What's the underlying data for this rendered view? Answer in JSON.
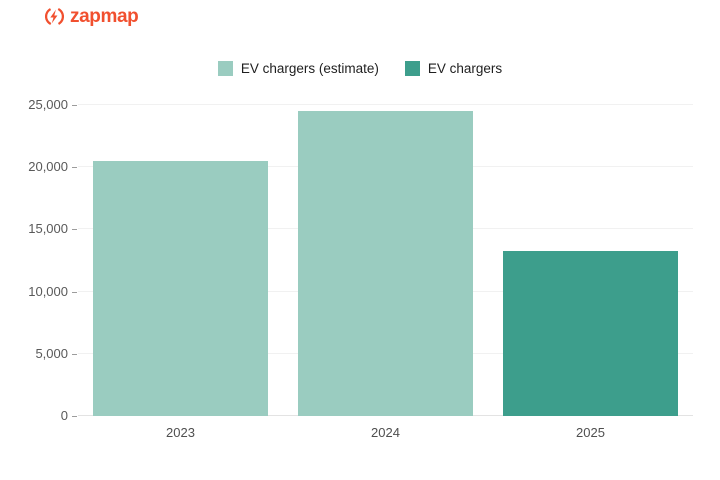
{
  "logo": {
    "brand": "zapmap",
    "color": "#f1502f"
  },
  "chart_data": {
    "type": "bar",
    "title": "",
    "xlabel": "",
    "ylabel": "",
    "categories": [
      "2023",
      "2024",
      "2025"
    ],
    "series": [
      {
        "name": "EV chargers (estimate)",
        "color": "#9accc0",
        "values": [
          20500,
          24500,
          null
        ]
      },
      {
        "name": "EV chargers",
        "color": "#3d9e8c",
        "values": [
          null,
          null,
          13300
        ]
      }
    ],
    "ylim": [
      0,
      25000
    ],
    "yticks": [
      0,
      5000,
      10000,
      15000,
      20000,
      25000
    ],
    "ytick_labels": [
      "0",
      "5,000",
      "10,000",
      "15,000",
      "20,000",
      "25,000"
    ],
    "grid": true,
    "legend_position": "top"
  }
}
